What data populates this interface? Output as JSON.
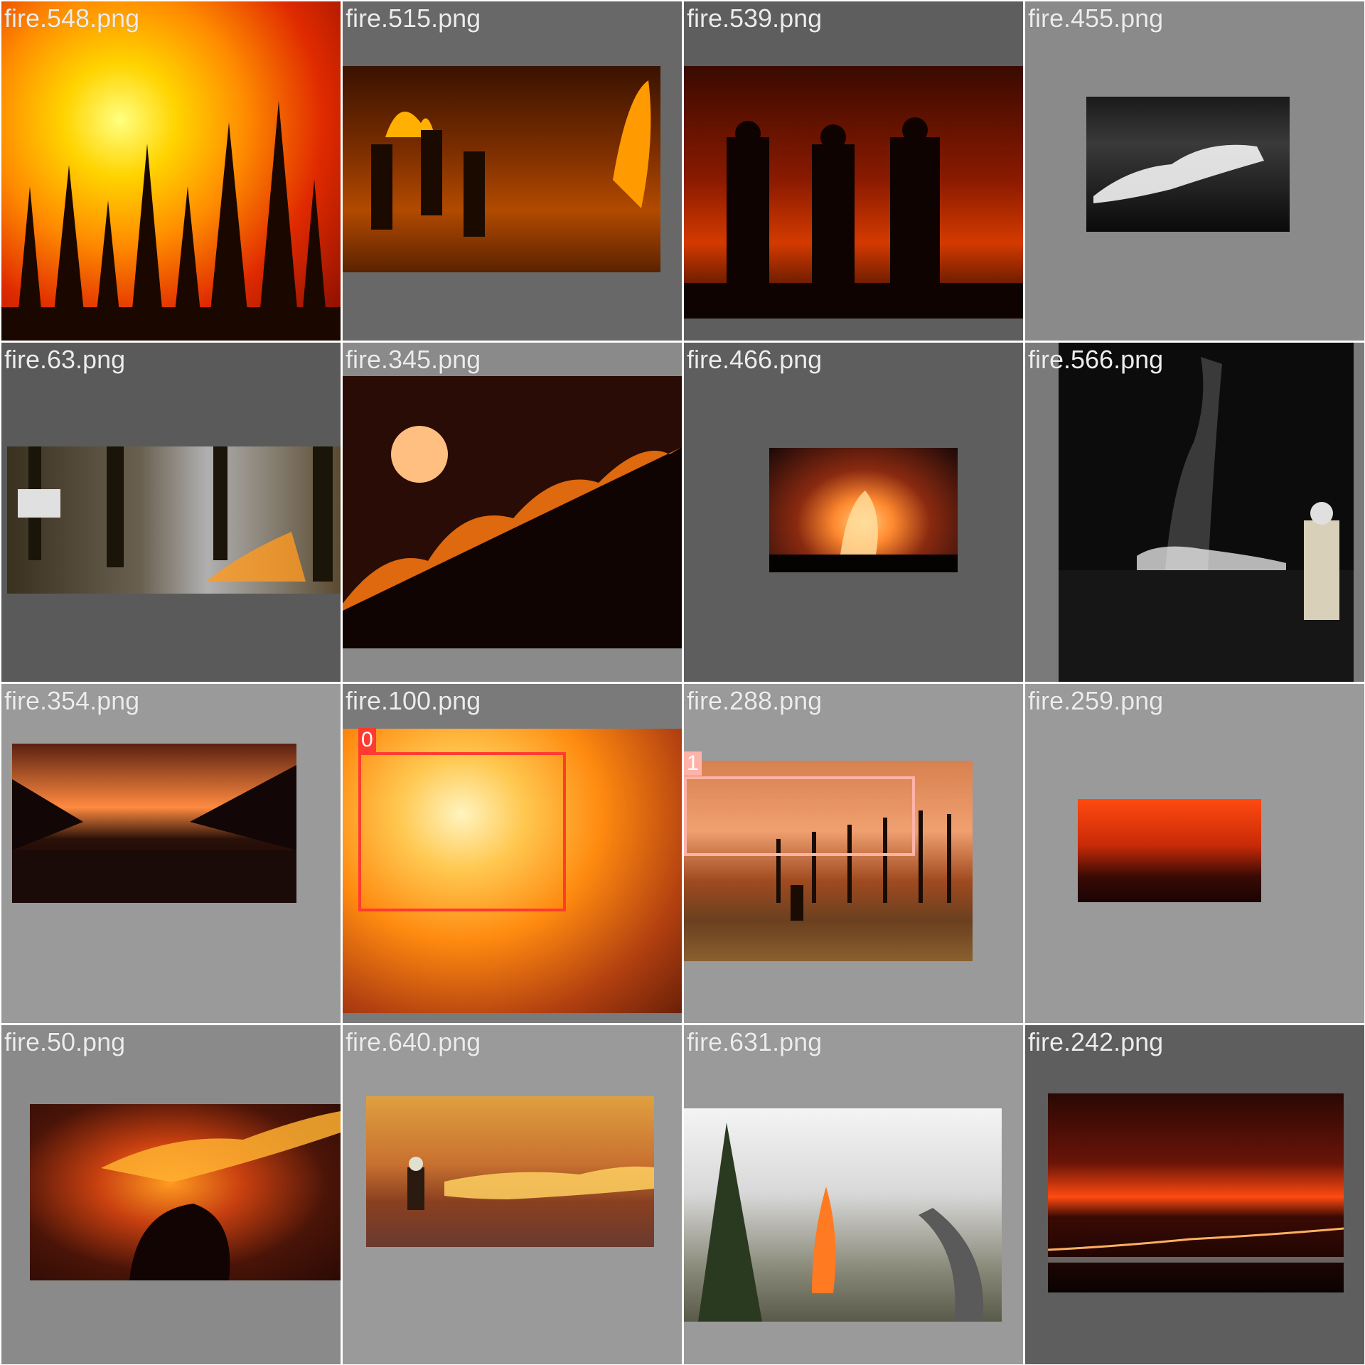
{
  "mosaic": {
    "tiles": [
      {
        "name": "fire.548.png"
      },
      {
        "name": "fire.515.png"
      },
      {
        "name": "fire.539.png"
      },
      {
        "name": "fire.455.png"
      },
      {
        "name": "fire.63.png"
      },
      {
        "name": "fire.345.png"
      },
      {
        "name": "fire.466.png"
      },
      {
        "name": "fire.566.png"
      },
      {
        "name": "fire.354.png"
      },
      {
        "name": "fire.100.png",
        "box": {
          "label": "0",
          "color": "#ff3b30"
        }
      },
      {
        "name": "fire.288.png",
        "box": {
          "label": "1",
          "color": "#ffb3a8"
        }
      },
      {
        "name": "fire.259.png"
      },
      {
        "name": "fire.50.png"
      },
      {
        "name": "fire.640.png"
      },
      {
        "name": "fire.631.png"
      },
      {
        "name": "fire.242.png"
      }
    ]
  }
}
